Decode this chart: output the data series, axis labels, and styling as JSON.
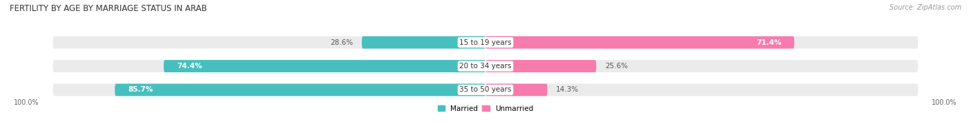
{
  "title": "FERTILITY BY AGE BY MARRIAGE STATUS IN ARAB",
  "source": "Source: ZipAtlas.com",
  "categories": [
    "15 to 19 years",
    "20 to 34 years",
    "35 to 50 years"
  ],
  "married_values": [
    28.6,
    74.4,
    85.7
  ],
  "unmarried_values": [
    71.4,
    25.6,
    14.3
  ],
  "married_color": "#47BFBF",
  "unmarried_color": "#F87BAD",
  "bar_bg_color": "#EBEBEB",
  "bar_height": 0.52,
  "figsize": [
    14.06,
    1.96
  ],
  "dpi": 100,
  "title_fontsize": 8.5,
  "label_fontsize": 7.5,
  "tick_fontsize": 7,
  "source_fontsize": 7,
  "legend_fontsize": 7.5,
  "axis_label_100_left": "100.0%",
  "axis_label_100_right": "100.0%",
  "bg_color": "#ffffff"
}
